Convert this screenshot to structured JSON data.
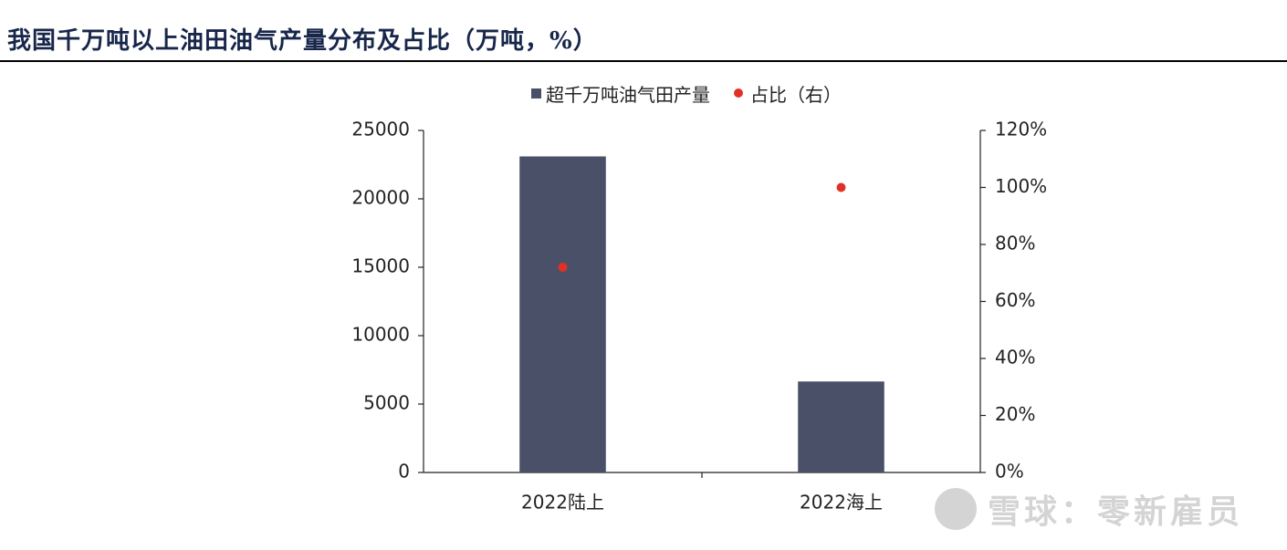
{
  "page": {
    "title": "我国千万吨以上油田油气产量分布及占比（万吨，%）",
    "watermark": "雪球：零新雇员"
  },
  "legend": {
    "bar_label": "超千万吨油气田产量",
    "dot_label": "占比（右）"
  },
  "colors": {
    "bar": "#4a5068",
    "dot": "#e03127",
    "title": "#17264a"
  },
  "chart_data": {
    "type": "bar",
    "title": "我国千万吨以上油田油气产量分布及占比（万吨，%）",
    "categories": [
      "2022陆上",
      "2022海上"
    ],
    "series": [
      {
        "name": "超千万吨油气田产量",
        "type": "bar",
        "axis": "left",
        "values": [
          23100,
          6650
        ]
      },
      {
        "name": "占比（右）",
        "type": "scatter",
        "axis": "right",
        "values": [
          72,
          100
        ]
      }
    ],
    "ylim": [
      0,
      25000
    ],
    "yticks": [
      "0",
      "5000",
      "10000",
      "15000",
      "20000",
      "25000"
    ],
    "y2lim": [
      0,
      120
    ],
    "y2ticks": [
      "0%",
      "20%",
      "40%",
      "60%",
      "80%",
      "100%",
      "120%"
    ],
    "legend_position": "top",
    "grid": false
  }
}
